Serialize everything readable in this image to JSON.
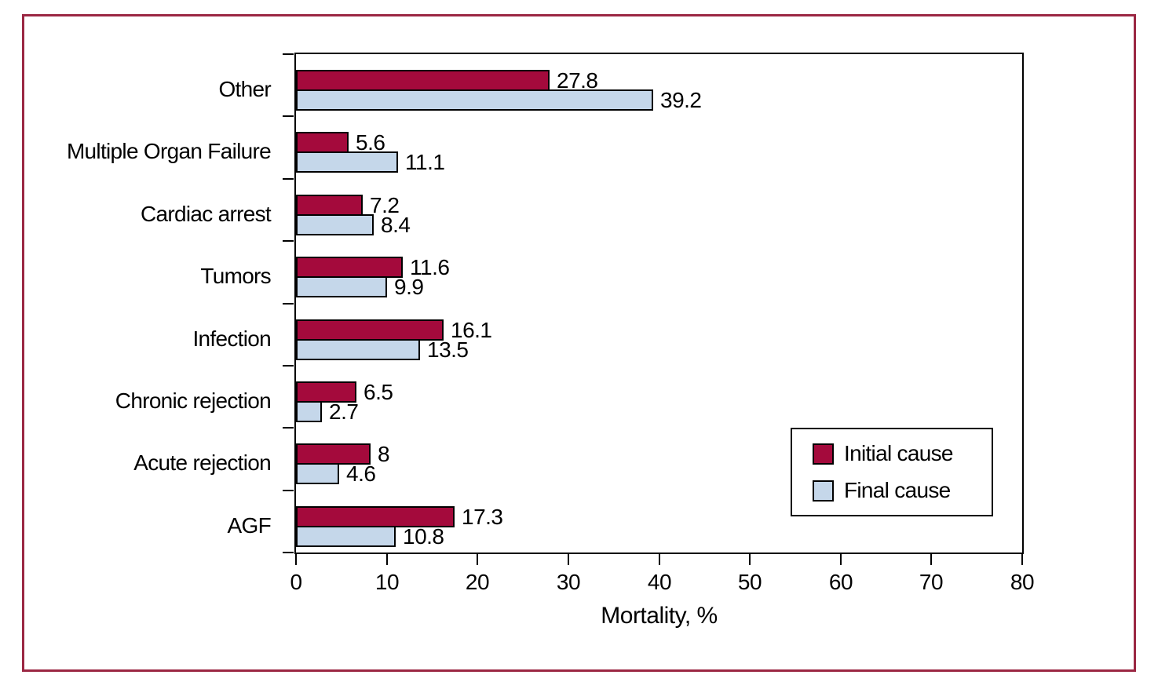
{
  "figure": {
    "frame_color": "#9B2743",
    "background_color": "#FFFFFF"
  },
  "chart_data": {
    "type": "bar",
    "orientation": "horizontal",
    "title": "",
    "xlabel": "Mortality, %",
    "ylabel": "",
    "xlim": [
      0,
      80
    ],
    "x_ticks": [
      0,
      10,
      20,
      30,
      40,
      50,
      60,
      70,
      80
    ],
    "grid": false,
    "categories": [
      "Other",
      "Multiple Organ Failure",
      "Cardiac arrest",
      "Tumors",
      "Infection",
      "Chronic rejection",
      "Acute rejection",
      "AGF"
    ],
    "series": [
      {
        "name": "Initial cause",
        "color": "#A40A3C",
        "values": [
          27.8,
          5.6,
          7.2,
          11.6,
          16.1,
          6.5,
          8,
          17.3
        ],
        "value_labels": [
          "27.8",
          "5.6",
          "7.2",
          "11.6",
          "16.1",
          "6.5",
          "8",
          "17.3"
        ]
      },
      {
        "name": "Final cause",
        "color": "#C5D7EA",
        "values": [
          39.2,
          11.1,
          8.4,
          9.9,
          13.5,
          2.7,
          4.6,
          10.8
        ],
        "value_labels": [
          "39.2",
          "11.1",
          "8.4",
          "9.9",
          "13.5",
          "2.7",
          "4.6",
          "10.8"
        ]
      }
    ],
    "legend": {
      "position": "inside-lower-right",
      "entries": [
        "Initial cause",
        "Final cause"
      ]
    },
    "bar_outline_color": "#000000",
    "axis_color": "#000000",
    "text_color": "#000000"
  }
}
